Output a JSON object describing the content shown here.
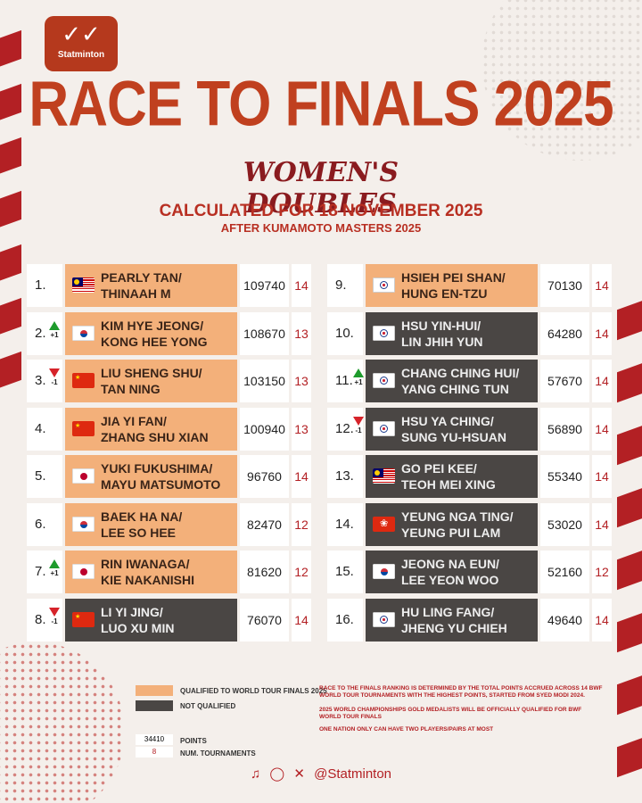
{
  "brand": {
    "name": "Statminton",
    "icon": "shuttlecock-icon"
  },
  "title": "RACE TO FINALS 2025",
  "subtitle": "WOMEN'S DOUBLES",
  "calculated": "CALCULATED FOR 18 NOVEMBER 2025",
  "after": "AFTER KUMAMOTO MASTERS 2025",
  "colors": {
    "qualified": "#f3b07a",
    "not_qualified": "#4a4644",
    "accent": "#b32024",
    "title": "#c0401f"
  },
  "rankings": [
    {
      "rank": "1.",
      "change": "",
      "dir": "",
      "p1": "PEARLY TAN/",
      "p2": "THINAAH M",
      "flag": "malaysia",
      "points": "109740",
      "tours": "14",
      "qualified": true
    },
    {
      "rank": "2.",
      "change": "+1",
      "dir": "up",
      "p1": "KIM HYE JEONG/",
      "p2": "KONG HEE YONG",
      "flag": "korea",
      "points": "108670",
      "tours": "13",
      "qualified": true
    },
    {
      "rank": "3.",
      "change": "-1",
      "dir": "down",
      "p1": "LIU SHENG SHU/",
      "p2": "TAN NING",
      "flag": "china",
      "points": "103150",
      "tours": "13",
      "qualified": true
    },
    {
      "rank": "4.",
      "change": "",
      "dir": "",
      "p1": "JIA YI FAN/",
      "p2": "ZHANG SHU XIAN",
      "flag": "china",
      "points": "100940",
      "tours": "13",
      "qualified": true
    },
    {
      "rank": "5.",
      "change": "",
      "dir": "",
      "p1": "YUKI FUKUSHIMA/",
      "p2": "MAYU MATSUMOTO",
      "flag": "japan",
      "points": "96760",
      "tours": "14",
      "qualified": true
    },
    {
      "rank": "6.",
      "change": "",
      "dir": "",
      "p1": "BAEK HA NA/",
      "p2": "LEE SO HEE",
      "flag": "korea",
      "points": "82470",
      "tours": "12",
      "qualified": true
    },
    {
      "rank": "7.",
      "change": "+1",
      "dir": "up",
      "p1": "RIN IWANAGA/",
      "p2": "KIE NAKANISHI",
      "flag": "japan",
      "points": "81620",
      "tours": "12",
      "qualified": true
    },
    {
      "rank": "8.",
      "change": "-1",
      "dir": "down",
      "p1": "LI YI JING/",
      "p2": "LUO XU MIN",
      "flag": "china",
      "points": "76070",
      "tours": "14",
      "qualified": false
    },
    {
      "rank": "9.",
      "change": "",
      "dir": "",
      "p1": "HSIEH PEI SHAN/",
      "p2": "HUNG EN-TZU",
      "flag": "tpe",
      "points": "70130",
      "tours": "14",
      "qualified": true
    },
    {
      "rank": "10.",
      "change": "",
      "dir": "",
      "p1": "HSU YIN-HUI/",
      "p2": "LIN JHIH YUN",
      "flag": "tpe",
      "points": "64280",
      "tours": "14",
      "qualified": false
    },
    {
      "rank": "11.",
      "change": "+1",
      "dir": "up",
      "p1": "CHANG CHING HUI/",
      "p2": "YANG CHING TUN",
      "flag": "tpe",
      "points": "57670",
      "tours": "14",
      "qualified": false
    },
    {
      "rank": "12.",
      "change": "-1",
      "dir": "down",
      "p1": "HSU YA CHING/",
      "p2": "SUNG YU-HSUAN",
      "flag": "tpe",
      "points": "56890",
      "tours": "14",
      "qualified": false
    },
    {
      "rank": "13.",
      "change": "",
      "dir": "",
      "p1": "GO PEI KEE/",
      "p2": "TEOH MEI XING",
      "flag": "malaysia",
      "points": "55340",
      "tours": "14",
      "qualified": false
    },
    {
      "rank": "14.",
      "change": "",
      "dir": "",
      "p1": "YEUNG NGA TING/",
      "p2": "YEUNG PUI LAM",
      "flag": "hongkong",
      "points": "53020",
      "tours": "14",
      "qualified": false
    },
    {
      "rank": "15.",
      "change": "",
      "dir": "",
      "p1": "JEONG NA EUN/",
      "p2": "LEE YEON WOO",
      "flag": "korea",
      "points": "52160",
      "tours": "12",
      "qualified": false
    },
    {
      "rank": "16.",
      "change": "",
      "dir": "",
      "p1": "HU LING FANG/",
      "p2": "JHENG YU CHIEH",
      "flag": "tpe",
      "points": "49640",
      "tours": "14",
      "qualified": false
    }
  ],
  "legend": {
    "qualified": "QUALIFIED TO WORLD TOUR FINALS 2025",
    "not_qualified": "NOT QUALIFIED",
    "sample_points": "34410",
    "points_label": "POINTS",
    "sample_tours": "8",
    "tours_label": "NUM. TOURNAMENTS"
  },
  "notes": [
    "RACE TO THE FINALS RANKING IS DETERMINED BY THE TOTAL POINTS ACCRUED ACROSS 14 BWF WORLD TOUR TOURNAMENTS WITH THE HIGHEST POINTS, STARTED FROM SYED MODI 2024.",
    "2025 WORLD CHAMPIONSHIPS GOLD MEDALISTS WILL BE OFFICIALLY QUALIFIED FOR BWF WORLD TOUR FINALS",
    "ONE NATION ONLY CAN HAVE TWO PLAYERS/PAIRS AT MOST"
  ],
  "social": {
    "handle": "@Statminton",
    "icons": [
      "tiktok-icon",
      "instagram-icon",
      "x-icon"
    ]
  }
}
